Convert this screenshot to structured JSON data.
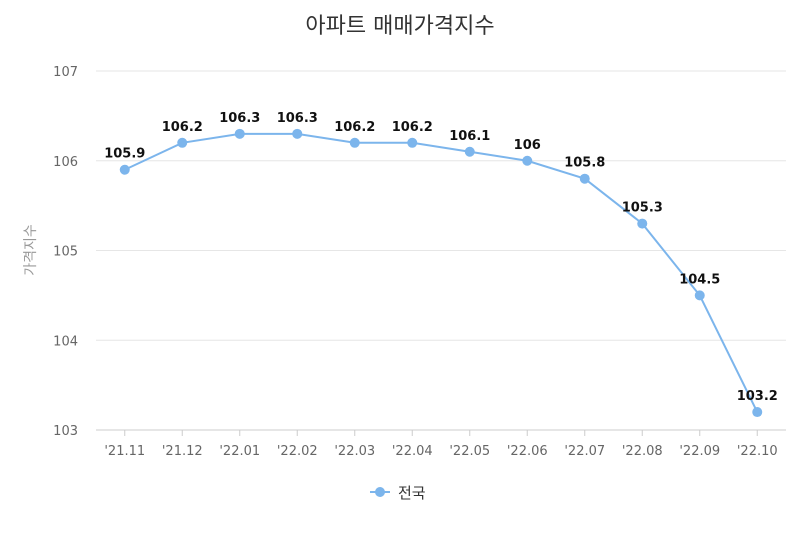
{
  "chart_data": {
    "type": "line",
    "title": "아파트 매매가격지수",
    "ylabel": "가격지수",
    "xlabel": "",
    "categories": [
      "'21.11",
      "'21.12",
      "'22.01",
      "'22.02",
      "'22.03",
      "'22.04",
      "'22.05",
      "'22.06",
      "'22.07",
      "'22.08",
      "'22.09",
      "'22.10"
    ],
    "series": [
      {
        "name": "전국",
        "values": [
          105.9,
          106.2,
          106.3,
          106.3,
          106.2,
          106.2,
          106.1,
          106,
          105.8,
          105.3,
          104.5,
          103.2
        ],
        "labels": [
          "105.9",
          "106.2",
          "106.3",
          "106.3",
          "106.2",
          "106.2",
          "106.1",
          "106",
          "105.8",
          "105.3",
          "104.5",
          "103.2"
        ]
      }
    ],
    "ylim": [
      103,
      107
    ],
    "yticks": [
      "103",
      "104",
      "105",
      "106",
      "107"
    ],
    "grid": true,
    "legend_position": "bottom",
    "colors": {
      "series": "#7cb5ec"
    }
  }
}
